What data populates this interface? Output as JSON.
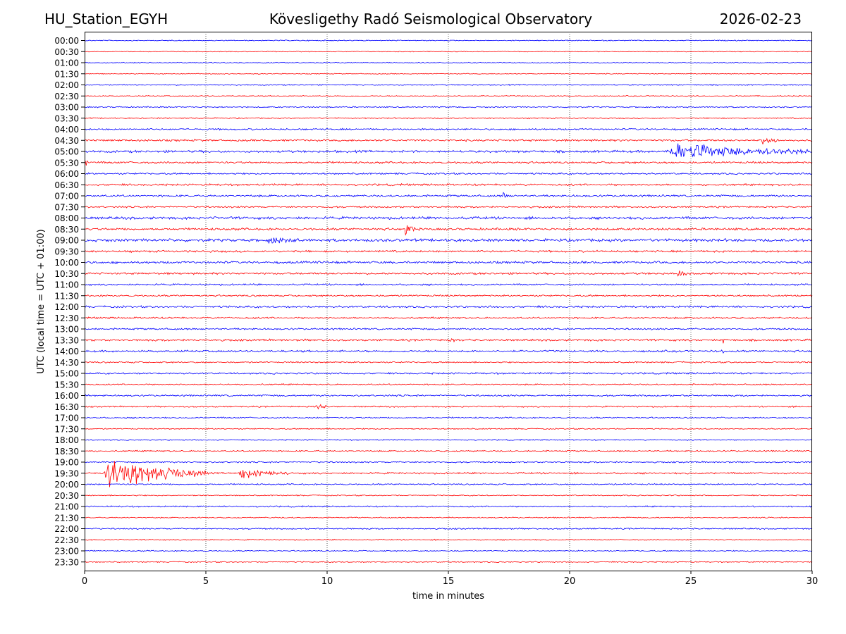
{
  "header": {
    "station": "HU_Station_EGYH",
    "title": "Kövesligethy Radó Seismological Observatory",
    "date": "2026-02-23"
  },
  "chart_data": {
    "type": "line",
    "title": "Kövesligethy Radó Seismological Observatory",
    "xlabel": "time in minutes",
    "ylabel": "UTC (local time = UTC + 01:00)",
    "xlim": [
      0,
      30
    ],
    "xticks": [
      0,
      5,
      10,
      15,
      20,
      25,
      30
    ],
    "xtick_labels": [
      "0",
      "5",
      "10",
      "15",
      "20",
      "25",
      "30"
    ],
    "x_gridlines": [
      5,
      10,
      15,
      20,
      25
    ],
    "grid": "vertical dotted",
    "row_labels": [
      "00:00",
      "00:30",
      "01:00",
      "01:30",
      "02:00",
      "02:30",
      "03:00",
      "03:30",
      "04:00",
      "04:30",
      "05:00",
      "05:30",
      "06:00",
      "06:30",
      "07:00",
      "07:30",
      "08:00",
      "08:30",
      "09:00",
      "09:30",
      "10:00",
      "10:30",
      "11:00",
      "11:30",
      "12:00",
      "12:30",
      "13:00",
      "13:30",
      "14:00",
      "14:30",
      "15:00",
      "15:30",
      "16:00",
      "16:30",
      "17:00",
      "17:30",
      "18:00",
      "18:30",
      "19:00",
      "19:30",
      "20:00",
      "20:30",
      "21:00",
      "21:30",
      "22:00",
      "22:30",
      "23:00",
      "23:30"
    ],
    "trace_colors": [
      "#0000ff",
      "#ff0000"
    ],
    "rows_per_trace_units": 1,
    "noise_amplitude": [
      0.035,
      0.03,
      0.03,
      0.03,
      0.04,
      0.035,
      0.045,
      0.04,
      0.06,
      0.07,
      0.08,
      0.07,
      0.06,
      0.07,
      0.07,
      0.06,
      0.09,
      0.08,
      0.1,
      0.07,
      0.08,
      0.07,
      0.06,
      0.06,
      0.07,
      0.06,
      0.06,
      0.07,
      0.07,
      0.05,
      0.06,
      0.05,
      0.06,
      0.05,
      0.05,
      0.04,
      0.04,
      0.05,
      0.05,
      0.06,
      0.05,
      0.04,
      0.05,
      0.04,
      0.05,
      0.04,
      0.04,
      0.04
    ],
    "events": [
      {
        "row": "04:30",
        "start": 27.8,
        "end": 28.9,
        "amplitude": 0.25
      },
      {
        "row": "05:00",
        "start": 23.95,
        "end": 30.0,
        "amplitude": 0.7
      },
      {
        "row": "05:30",
        "start": 0.0,
        "end": 0.2,
        "amplitude": 0.4
      },
      {
        "row": "07:00",
        "start": 17.2,
        "end": 17.5,
        "amplitude": 0.3
      },
      {
        "row": "08:30",
        "start": 13.2,
        "end": 13.6,
        "amplitude": 0.6
      },
      {
        "row": "09:00",
        "start": 7.5,
        "end": 9.0,
        "amplitude": 0.3
      },
      {
        "row": "10:30",
        "start": 24.4,
        "end": 24.8,
        "amplitude": 0.35
      },
      {
        "row": "13:30",
        "start": 15.0,
        "end": 15.3,
        "amplitude": 0.3
      },
      {
        "row": "13:30",
        "start": 26.3,
        "end": 26.5,
        "amplitude": 0.5
      },
      {
        "row": "14:00",
        "start": 26.2,
        "end": 26.4,
        "amplitude": 0.35
      },
      {
        "row": "16:30",
        "start": 9.5,
        "end": 10.0,
        "amplitude": 0.3
      },
      {
        "row": "19:30",
        "start": 0.8,
        "end": 5.0,
        "amplitude": 1.6
      },
      {
        "row": "19:30",
        "start": 6.3,
        "end": 8.5,
        "amplitude": 0.45
      }
    ]
  }
}
